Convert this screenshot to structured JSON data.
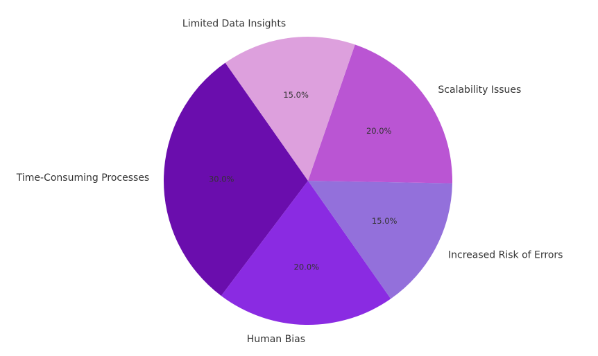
{
  "chart_data": {
    "type": "pie",
    "title": "",
    "categories": [
      "Time-Consuming Processes",
      "Human Bias",
      "Increased Risk of Errors",
      "Scalability Issues",
      "Limited Data Insights"
    ],
    "values": [
      30,
      20,
      15,
      20,
      15
    ],
    "percent_labels": [
      "30.0%",
      "20.0%",
      "15.0%",
      "20.0%",
      "15.0%"
    ],
    "colors": [
      "#6a0dad",
      "#8a2be2",
      "#9370db",
      "#ba55d3",
      "#dda0dd"
    ],
    "start_angle_deg": 125,
    "direction": "counterclockwise",
    "legend": "none"
  }
}
